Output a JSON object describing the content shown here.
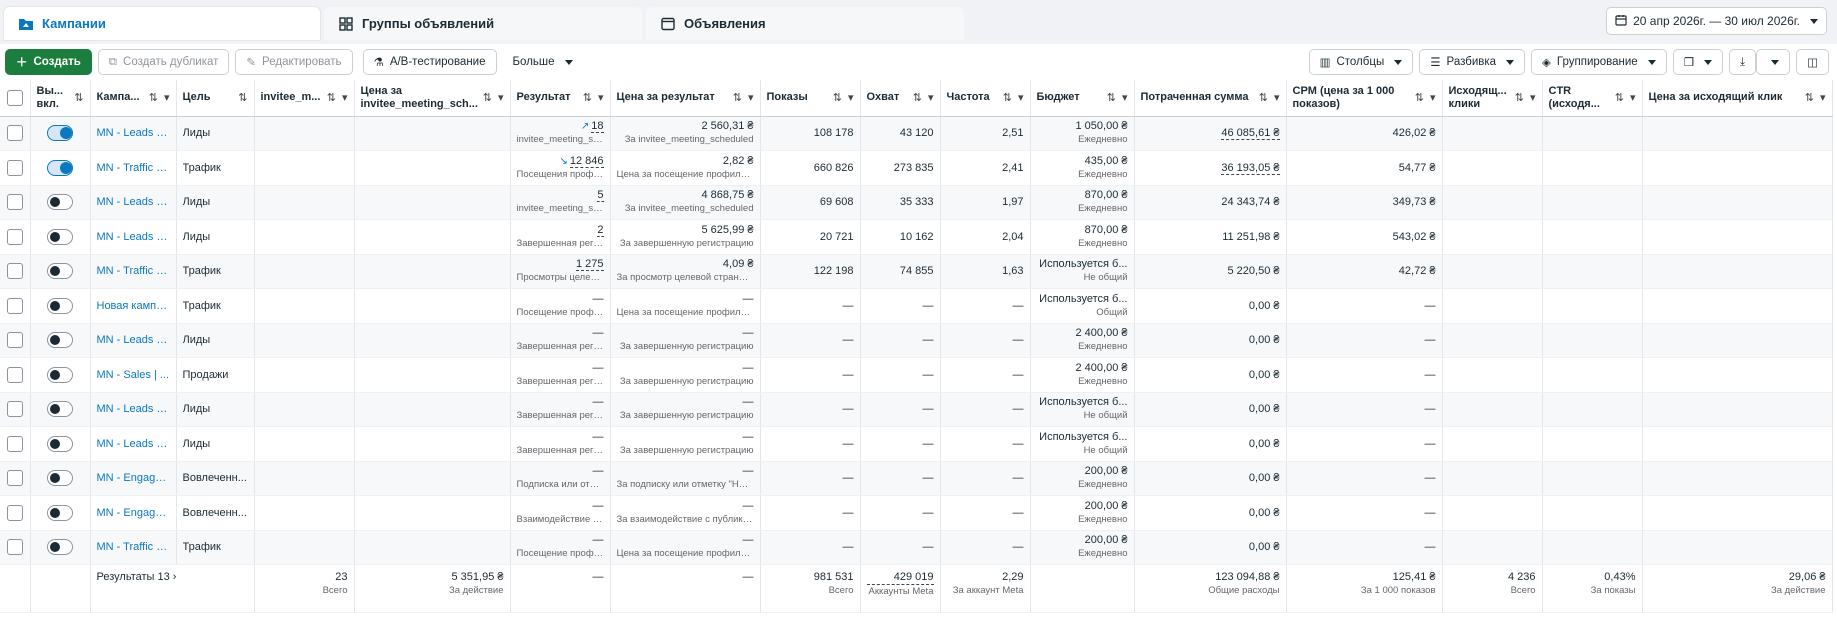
{
  "tabs": [
    {
      "label": "Кампании",
      "icon": "folder-icon",
      "active": true
    },
    {
      "label": "Группы объявлений",
      "icon": "grid-icon",
      "active": false
    },
    {
      "label": "Объявления",
      "icon": "ad-icon",
      "active": false
    }
  ],
  "date_range": "20 апр 2026г. — 30 июл 2026г.",
  "toolbar": {
    "create": "Создать",
    "duplicate": "Создать дубликат",
    "edit": "Редактировать",
    "ab_test": "A/B-тестирование",
    "more": "Больше",
    "columns": "Столбцы",
    "breakdown": "Разбивка",
    "grouping": "Группирование"
  },
  "headers": {
    "onoff": "Вы... вкл.",
    "campaign": "Кампа...",
    "goal": "Цель",
    "invitee": "invitee_m...",
    "cost_invitee": "Цена за invitee_meeting_sch...",
    "result": "Результат",
    "cost_result": "Цена за результат",
    "impressions": "Показы",
    "reach": "Охват",
    "frequency": "Частота",
    "budget": "Бюджет",
    "spent": "Потраченная сумма",
    "cpm": "CPM (цена за 1 000 показов)",
    "out_clicks": "Исходящ... клики",
    "ctr": "CTR (исходя...",
    "cost_out_click": "Цена за исходящий клик"
  },
  "rows": [
    {
      "on": true,
      "campaign": "MN - Leads | ...",
      "goal": "Лиды",
      "result": "18",
      "result_trend": "up",
      "result_sub": "invitee_meeting_sc...",
      "cost": "2 560,31 ₴",
      "cost_sub": "За invitee_meeting_scheduled",
      "impr": "108 178",
      "reach": "43 120",
      "freq": "2,51",
      "budget": "1 050,00 ₴",
      "budget_sub": "Ежедневно",
      "spent": "46 085,61 ₴",
      "spent_dotted": true,
      "cpm": "426,02 ₴"
    },
    {
      "on": true,
      "campaign": "MN - Traffic | ...",
      "goal": "Трафик",
      "result": "12 846",
      "result_trend": "down",
      "result_sub": "Посещения профиля...",
      "cost": "2,82 ₴",
      "cost_sub": "Цена за посещение профиля Inst...",
      "impr": "660 826",
      "reach": "273 835",
      "freq": "2,41",
      "budget": "435,00 ₴",
      "budget_sub": "Ежедневно",
      "spent": "36 193,05 ₴",
      "spent_dotted": true,
      "cpm": "54,77 ₴"
    },
    {
      "on": false,
      "campaign": "MN - Leads | ...",
      "goal": "Лиды",
      "result": "5",
      "result_sub": "invitee_meeting_sc...",
      "cost": "4 868,75 ₴",
      "cost_sub": "За invitee_meeting_scheduled",
      "impr": "69 608",
      "reach": "35 333",
      "freq": "1,97",
      "budget": "870,00 ₴",
      "budget_sub": "Ежедневно",
      "spent": "24 343,74 ₴",
      "cpm": "349,73 ₴"
    },
    {
      "on": false,
      "campaign": "MN - Leads | ...",
      "goal": "Лиды",
      "result": "2",
      "result_sub": "Завершенная регис...",
      "cost": "5 625,99 ₴",
      "cost_sub": "За завершенную регистрацию",
      "impr": "20 721",
      "reach": "10 162",
      "freq": "2,04",
      "budget": "870,00 ₴",
      "budget_sub": "Ежедневно",
      "spent": "11 251,98 ₴",
      "cpm": "543,02 ₴"
    },
    {
      "on": false,
      "campaign": "MN - Traffic | ...",
      "goal": "Трафик",
      "result": "1 275",
      "result_sub": "Просмотры целевой...",
      "cost": "4,09 ₴",
      "cost_sub": "За просмотр целевой страницы",
      "impr": "122 198",
      "reach": "74 855",
      "freq": "1,63",
      "budget": "Используется б...",
      "budget_sub": "Не общий",
      "spent": "5 220,50 ₴",
      "cpm": "42,72 ₴"
    },
    {
      "on": false,
      "campaign": "Новая кампа...",
      "goal": "Трафик",
      "result": "—",
      "result_sub": "Посещение профил...",
      "cost": "—",
      "cost_sub": "Цена за посещение профиля Inst...",
      "impr": "—",
      "reach": "—",
      "freq": "—",
      "budget": "Используется б...",
      "budget_sub": "Общий",
      "spent": "0,00 ₴",
      "cpm": "—"
    },
    {
      "on": false,
      "campaign": "MN - Leads | ...",
      "goal": "Лиды",
      "result": "—",
      "result_sub": "Завершенная регис...",
      "cost": "—",
      "cost_sub": "За завершенную регистрацию",
      "impr": "—",
      "reach": "—",
      "freq": "—",
      "budget": "2 400,00 ₴",
      "budget_sub": "Ежедневно",
      "spent": "0,00 ₴",
      "cpm": "—"
    },
    {
      "on": false,
      "campaign": "MN - Sales | ...",
      "goal": "Продажи",
      "result": "—",
      "result_sub": "Завершенная регис...",
      "cost": "—",
      "cost_sub": "За завершенную регистрацию",
      "impr": "—",
      "reach": "—",
      "freq": "—",
      "budget": "2 400,00 ₴",
      "budget_sub": "Ежедневно",
      "spent": "0,00 ₴",
      "cpm": "—"
    },
    {
      "on": false,
      "campaign": "MN - Leads | ...",
      "goal": "Лиды",
      "result": "—",
      "result_sub": "Завершенная регис...",
      "cost": "—",
      "cost_sub": "За завершенную регистрацию",
      "impr": "—",
      "reach": "—",
      "freq": "—",
      "budget": "Используется б...",
      "budget_sub": "Не общий",
      "spent": "0,00 ₴",
      "cpm": "—"
    },
    {
      "on": false,
      "campaign": "MN - Leads | ...",
      "goal": "Лиды",
      "result": "—",
      "result_sub": "Завершенная регис...",
      "cost": "—",
      "cost_sub": "За завершенную регистрацию",
      "impr": "—",
      "reach": "—",
      "freq": "—",
      "budget": "Используется б...",
      "budget_sub": "Не общий",
      "spent": "0,00 ₴",
      "cpm": "—"
    },
    {
      "on": false,
      "campaign": "MN - Engage...",
      "goal": "Вовлеченн...",
      "result": "—",
      "result_sub": "Подписка или отме...",
      "cost": "—",
      "cost_sub": "За подписку или отметку \"Нрави...",
      "impr": "—",
      "reach": "—",
      "freq": "—",
      "budget": "200,00 ₴",
      "budget_sub": "Ежедневно",
      "spent": "0,00 ₴",
      "cpm": "—"
    },
    {
      "on": false,
      "campaign": "MN - Engage...",
      "goal": "Вовлеченн...",
      "result": "—",
      "result_sub": "Взаимодействие с п...",
      "cost": "—",
      "cost_sub": "За взаимодействие с публикацией",
      "impr": "—",
      "reach": "—",
      "freq": "—",
      "budget": "200,00 ₴",
      "budget_sub": "Ежедневно",
      "spent": "0,00 ₴",
      "cpm": "—"
    },
    {
      "on": false,
      "campaign": "MN - Traffic | ...",
      "goal": "Трафик",
      "result": "—",
      "result_sub": "Посещение профил...",
      "cost": "—",
      "cost_sub": "Цена за посещение профиля Inst...",
      "impr": "—",
      "reach": "—",
      "freq": "—",
      "budget": "200,00 ₴",
      "budget_sub": "Ежедневно",
      "spent": "0,00 ₴",
      "cpm": "—"
    }
  ],
  "summary": {
    "label": "Результаты 13",
    "invitee": "23",
    "invitee_sub": "Всего",
    "cost_invitee": "5 351,95 ₴",
    "cost_invitee_sub": "За действие",
    "result": "—",
    "cost_result": "—",
    "impr": "981 531",
    "impr_sub": "Всего",
    "reach": "429 019",
    "reach_sub": "Аккаунты Meta",
    "freq": "2,29",
    "freq_sub": "За аккаунт Meta",
    "spent": "123 094,88 ₴",
    "spent_sub": "Общие расходы",
    "cpm": "125,41 ₴",
    "cpm_sub": "За 1 000 показов",
    "out_clicks": "4 236",
    "out_clicks_sub": "Всего",
    "ctr": "0,43%",
    "ctr_sub": "За показы",
    "cost_out_click": "29,06 ₴",
    "cost_out_click_sub": "За действие"
  }
}
